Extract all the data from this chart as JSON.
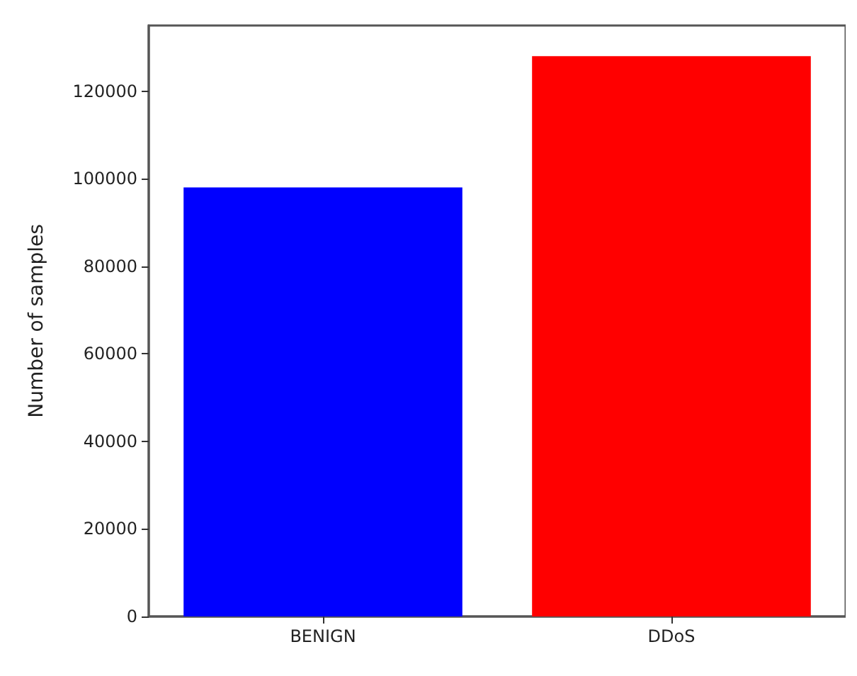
{
  "chart_data": {
    "type": "bar",
    "ylabel": "Number of samples",
    "categories": [
      "BENIGN",
      "DDoS"
    ],
    "values": [
      98000,
      128000
    ],
    "colors": [
      "#0000ff",
      "#ff0000"
    ],
    "ylim": [
      0,
      135000
    ],
    "yticks": [
      0,
      20000,
      40000,
      60000,
      80000,
      100000,
      120000
    ],
    "grid": false
  }
}
